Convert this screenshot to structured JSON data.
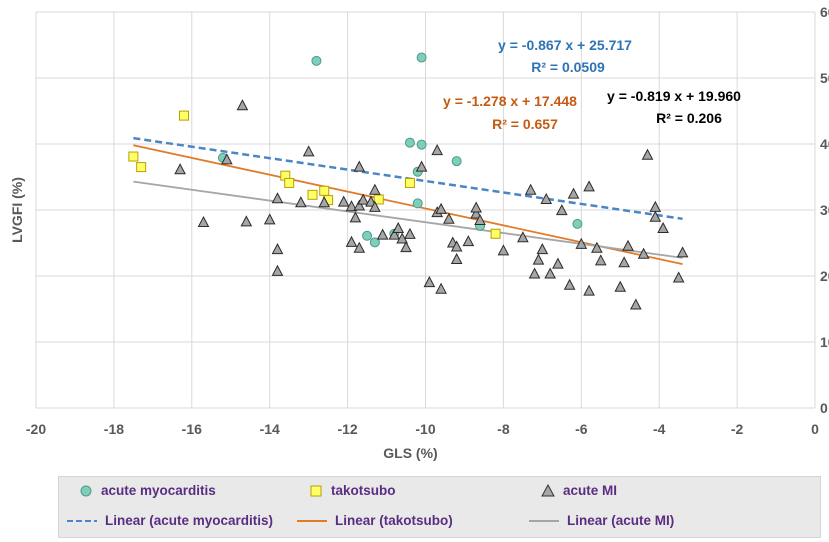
{
  "chart_data": {
    "type": "scatter",
    "xlabel": "GLS (%)",
    "ylabel": "LVGFI (%)",
    "xlim": [
      -20,
      0
    ],
    "ylim": [
      0,
      60
    ],
    "xticks": [
      -20,
      -18,
      -16,
      -14,
      -12,
      -10,
      -8,
      -6,
      -4,
      -2,
      0
    ],
    "yticks": [
      0,
      10,
      20,
      30,
      40,
      50,
      60
    ],
    "xtick_labels": [
      "-20",
      "-18",
      "-16",
      "-14",
      "-12",
      "-10",
      "-8",
      "-6",
      "-4",
      "-2",
      "0"
    ],
    "ytick_labels": [
      "0",
      "10",
      "20",
      "30",
      "40",
      "50",
      "60"
    ],
    "series": [
      {
        "name": "acute myocarditis",
        "marker": "circle",
        "color": "#7fcdbb",
        "points": [
          [
            -12.8,
            52.6
          ],
          [
            -10.1,
            53.1
          ],
          [
            -15.2,
            37.9
          ],
          [
            -10.4,
            40.2
          ],
          [
            -10.1,
            39.9
          ],
          [
            -10.2,
            35.8
          ],
          [
            -9.2,
            37.4
          ],
          [
            -10.2,
            31.0
          ],
          [
            -11.5,
            26.1
          ],
          [
            -11.3,
            25.1
          ],
          [
            -10.8,
            26.4
          ],
          [
            -8.6,
            27.6
          ],
          [
            -6.1,
            27.9
          ]
        ]
      },
      {
        "name": "takotsubo",
        "marker": "square",
        "color": "#ffff66",
        "points": [
          [
            -17.5,
            38.1
          ],
          [
            -17.3,
            36.5
          ],
          [
            -16.2,
            44.3
          ],
          [
            -13.6,
            35.2
          ],
          [
            -13.5,
            34.1
          ],
          [
            -12.9,
            32.3
          ],
          [
            -12.6,
            32.9
          ],
          [
            -12.5,
            31.5
          ],
          [
            -11.2,
            31.6
          ],
          [
            -10.4,
            34.1
          ],
          [
            -8.2,
            26.4
          ]
        ]
      },
      {
        "name": "acute MI",
        "marker": "triangle",
        "color": "#a6a6a6",
        "points": [
          [
            -14.7,
            45.8
          ],
          [
            -16.3,
            36.1
          ],
          [
            -15.1,
            37.6
          ],
          [
            -13.0,
            38.8
          ],
          [
            -11.7,
            36.5
          ],
          [
            -10.1,
            36.5
          ],
          [
            -9.7,
            39.0
          ],
          [
            -4.3,
            38.3
          ],
          [
            -15.7,
            28.1
          ],
          [
            -14.6,
            28.2
          ],
          [
            -14.0,
            28.5
          ],
          [
            -13.8,
            31.7
          ],
          [
            -13.8,
            24.0
          ],
          [
            -13.8,
            20.7
          ],
          [
            -13.2,
            31.1
          ],
          [
            -12.6,
            31.1
          ],
          [
            -12.1,
            31.2
          ],
          [
            -11.9,
            30.5
          ],
          [
            -11.9,
            25.1
          ],
          [
            -11.8,
            28.8
          ],
          [
            -11.7,
            30.6
          ],
          [
            -11.7,
            24.2
          ],
          [
            -11.6,
            31.5
          ],
          [
            -11.4,
            31.2
          ],
          [
            -11.3,
            33.0
          ],
          [
            -11.3,
            30.4
          ],
          [
            -11.1,
            26.2
          ],
          [
            -10.8,
            26.2
          ],
          [
            -10.7,
            27.2
          ],
          [
            -10.6,
            25.6
          ],
          [
            -10.5,
            24.3
          ],
          [
            -10.4,
            26.3
          ],
          [
            -9.7,
            29.6
          ],
          [
            -9.6,
            30.1
          ],
          [
            -9.6,
            18.0
          ],
          [
            -9.4,
            28.6
          ],
          [
            -9.3,
            25.0
          ],
          [
            -9.2,
            22.5
          ],
          [
            -9.2,
            24.4
          ],
          [
            -8.9,
            25.2
          ],
          [
            -8.7,
            29.4
          ],
          [
            -8.7,
            30.3
          ],
          [
            -8.6,
            28.4
          ],
          [
            -8.0,
            23.8
          ],
          [
            -7.5,
            25.8
          ],
          [
            -7.3,
            33.0
          ],
          [
            -7.2,
            20.3
          ],
          [
            -7.1,
            22.4
          ],
          [
            -7.0,
            24.0
          ],
          [
            -6.9,
            31.6
          ],
          [
            -6.8,
            20.3
          ],
          [
            -6.6,
            21.8
          ],
          [
            -6.5,
            29.9
          ],
          [
            -6.3,
            18.6
          ],
          [
            -6.2,
            32.4
          ],
          [
            -6.0,
            24.8
          ],
          [
            -5.8,
            33.5
          ],
          [
            -5.8,
            17.7
          ],
          [
            -5.6,
            24.2
          ],
          [
            -5.5,
            22.3
          ],
          [
            -5.0,
            18.3
          ],
          [
            -4.8,
            24.5
          ],
          [
            -4.6,
            15.6
          ],
          [
            -4.4,
            23.3
          ],
          [
            -4.1,
            30.4
          ],
          [
            -4.1,
            28.9
          ],
          [
            -3.9,
            27.2
          ],
          [
            -3.5,
            19.7
          ],
          [
            -3.4,
            23.5
          ],
          [
            -9.9,
            19.0
          ],
          [
            -4.9,
            22.0
          ]
        ]
      }
    ],
    "trendlines": [
      {
        "name": "Linear (acute myocarditis)",
        "slope": -0.867,
        "intercept": 25.717,
        "x_range": [
          -17.5,
          -3.4
        ],
        "color": "#4a86c6",
        "style": "dashed",
        "equation": "y = -0.867 x + 25.717",
        "r2": "R² = 0.0509"
      },
      {
        "name": "Linear (takotsubo)",
        "slope": -1.278,
        "intercept": 17.448,
        "x_range": [
          -17.5,
          -3.4
        ],
        "color": "#e07b2a",
        "style": "solid",
        "equation": "y = -1.278 x + 17.448",
        "r2": "R² = 0.657"
      },
      {
        "name": "Linear (acute MI)",
        "slope": -0.819,
        "intercept": 19.96,
        "x_range": [
          -17.5,
          -3.4
        ],
        "color": "#a6a6a6",
        "style": "solid",
        "equation": "y = -0.819 x + 19.960",
        "r2": "R² = 0.206"
      }
    ],
    "annotation_colors": [
      "#2e74b5",
      "#c55a11",
      "#000000"
    ],
    "legend_position": "bottom"
  },
  "legend": {
    "items": [
      "acute myocarditis",
      "takotsubo",
      "acute MI",
      "Linear (acute myocarditis)",
      "Linear (takotsubo)",
      "Linear (acute MI)"
    ]
  }
}
